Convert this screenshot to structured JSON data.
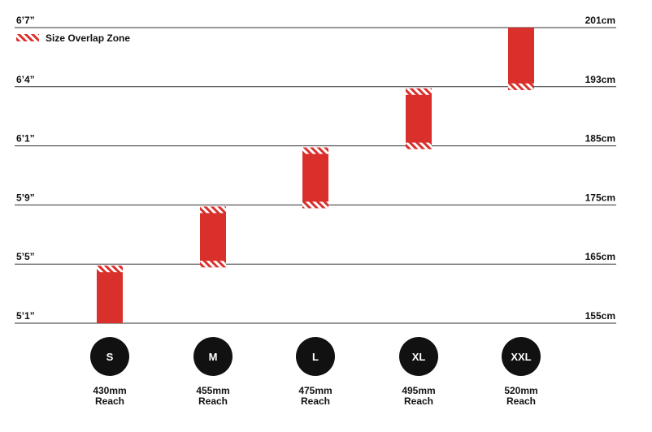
{
  "chart_data": {
    "type": "bar",
    "title": "",
    "xlabel": "",
    "ylabel": "",
    "legend": {
      "label": "Size Overlap Zone",
      "placement": "top-left"
    },
    "colors": {
      "bar": "#d9302c",
      "overlap_hatch": "#ffffff",
      "grid": "#333333",
      "size_badge": "#111111"
    },
    "y_axis_left": {
      "ticks": [
        {
          "label": "5’1”",
          "value": 155
        },
        {
          "label": "5’5”",
          "value": 165
        },
        {
          "label": "5’9”",
          "value": 175
        },
        {
          "label": "6’1”",
          "value": 185
        },
        {
          "label": "6’4”",
          "value": 193
        },
        {
          "label": "6’7”",
          "value": 201
        }
      ]
    },
    "y_axis_right": {
      "ticks": [
        {
          "label": "155cm",
          "value": 155
        },
        {
          "label": "165cm",
          "value": 165
        },
        {
          "label": "175cm",
          "value": 175
        },
        {
          "label": "185cm",
          "value": 185
        },
        {
          "label": "193cm",
          "value": 193
        },
        {
          "label": "201cm",
          "value": 201
        }
      ]
    },
    "grid": true,
    "categories": [
      "S",
      "M",
      "L",
      "XL",
      "XXL"
    ],
    "reach_values": [
      "430mm",
      "455mm",
      "475mm",
      "495mm",
      "520mm"
    ],
    "reach_unit_label": "Reach",
    "series": [
      {
        "ranges": [
          {
            "size": "S",
            "low": 155,
            "high": 165,
            "overlap_low": false,
            "overlap_high": true
          },
          {
            "size": "M",
            "low": 165,
            "high": 175,
            "overlap_low": true,
            "overlap_high": true
          },
          {
            "size": "L",
            "low": 175,
            "high": 185,
            "overlap_low": true,
            "overlap_high": true
          },
          {
            "size": "XL",
            "low": 185,
            "high": 193,
            "overlap_low": true,
            "overlap_high": true
          },
          {
            "size": "XXL",
            "low": 193,
            "high": 201,
            "overlap_low": true,
            "overlap_high": false
          }
        ]
      }
    ]
  }
}
